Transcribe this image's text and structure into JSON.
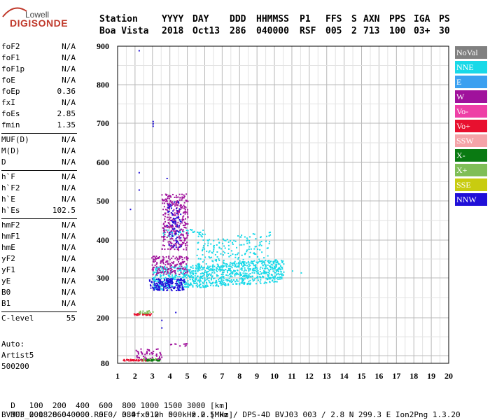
{
  "logo": {
    "line1": "Lowell",
    "line2": "DIGISONDE"
  },
  "header": {
    "labels": [
      "Station",
      "YYYY",
      "DAY",
      "DDD",
      "HHMMSS",
      "P1",
      "FFS",
      "S",
      "AXN",
      "PPS",
      "IGA",
      "PS"
    ],
    "values": [
      "Boa Vista",
      "2018",
      "Oct13",
      "286",
      "040000",
      "RSF",
      "005",
      "2",
      "713",
      "100",
      "03+",
      "30"
    ]
  },
  "params": [
    {
      "name": "foF2",
      "value": "N/A"
    },
    {
      "name": "foF1",
      "value": "N/A"
    },
    {
      "name": "foF1p",
      "value": "N/A"
    },
    {
      "name": "foE",
      "value": "N/A"
    },
    {
      "name": "foEp",
      "value": "0.36"
    },
    {
      "name": "fxI",
      "value": "N/A"
    },
    {
      "name": "foEs",
      "value": "2.85"
    },
    {
      "name": "fmin",
      "value": "1.35"
    },
    {
      "name": "MUF(D)",
      "value": "N/A"
    },
    {
      "name": "M(D)",
      "value": "N/A"
    },
    {
      "name": "D",
      "value": "N/A"
    },
    {
      "name": "h`F",
      "value": "N/A"
    },
    {
      "name": "h`F2",
      "value": "N/A"
    },
    {
      "name": "h`E",
      "value": "N/A"
    },
    {
      "name": "h`Es",
      "value": "102.5"
    },
    {
      "name": "hmF2",
      "value": "N/A"
    },
    {
      "name": "hmF1",
      "value": "N/A"
    },
    {
      "name": "hmE",
      "value": "N/A"
    },
    {
      "name": "yF2",
      "value": "N/A"
    },
    {
      "name": "yF1",
      "value": "N/A"
    },
    {
      "name": "yE",
      "value": "N/A"
    },
    {
      "name": "B0",
      "value": "N/A"
    },
    {
      "name": "B1",
      "value": "N/A"
    },
    {
      "name": "C-level",
      "value": "55"
    }
  ],
  "auto_label": "Auto:",
  "artist": "Artist5",
  "artist_version": "500200",
  "legend": [
    {
      "label": "NoVal",
      "color": "#808080"
    },
    {
      "label": "NNE",
      "color": "#19d9e8"
    },
    {
      "label": "E",
      "color": "#3ba0f0"
    },
    {
      "label": "W",
      "color": "#a0129c"
    },
    {
      "label": "Vo-",
      "color": "#ee3fa6"
    },
    {
      "label": "Vo+",
      "color": "#e8102f"
    },
    {
      "label": "SSW",
      "color": "#f5a3a8"
    },
    {
      "label": "X-",
      "color": "#0a7a12"
    },
    {
      "label": "X+",
      "color": "#7fbe57"
    },
    {
      "label": "SSE",
      "color": "#c8cc10"
    },
    {
      "label": "NNW",
      "color": "#2010d8"
    }
  ],
  "chart_data": {
    "type": "scatter",
    "x_ticks": [
      "1",
      "2",
      "3",
      "4",
      "5",
      "6",
      "7",
      "8",
      "9",
      "10",
      "11",
      "12",
      "13",
      "14",
      "15",
      "16",
      "17",
      "18",
      "19",
      "20"
    ],
    "y_ticks": [
      "80",
      "200",
      "300",
      "400",
      "500",
      "600",
      "700",
      "800",
      "900"
    ],
    "xlim": [
      1,
      20
    ],
    "y_scale": "log-like ionogram height scale",
    "ylim": [
      80,
      900
    ],
    "grid": true,
    "clusters": [
      {
        "color": "#19d9e8",
        "x": [
          3.0,
          10.5
        ],
        "y": [
          270,
          330
        ],
        "n": 900,
        "trend": 0.35
      },
      {
        "color": "#19d9e8",
        "x": [
          5.5,
          9.8
        ],
        "y": [
          320,
          400
        ],
        "n": 180,
        "trend": 0.3
      },
      {
        "color": "#19d9e8",
        "x": [
          3.5,
          6.0
        ],
        "y": [
          410,
          430
        ],
        "n": 50,
        "trend": 0
      },
      {
        "color": "#a0129c",
        "x": [
          3.5,
          5.0
        ],
        "y": [
          375,
          520
        ],
        "n": 320,
        "trend": 0
      },
      {
        "color": "#a0129c",
        "x": [
          2.9,
          5.0
        ],
        "y": [
          310,
          360
        ],
        "n": 160,
        "trend": 0
      },
      {
        "color": "#2010d8",
        "x": [
          2.8,
          4.8
        ],
        "y": [
          270,
          300
        ],
        "n": 180,
        "trend": 0
      },
      {
        "color": "#2010d8",
        "x": [
          3.8,
          4.6
        ],
        "y": [
          380,
          500
        ],
        "n": 70,
        "trend": 0
      },
      {
        "color": "#e8102f",
        "x": [
          1.9,
          2.9
        ],
        "y": [
          208,
          212
        ],
        "n": 40,
        "trend": 0
      },
      {
        "color": "#7fbe57",
        "x": [
          2.2,
          3.0
        ],
        "y": [
          212,
          220
        ],
        "n": 20,
        "trend": 0
      },
      {
        "color": "#e8102f",
        "x": [
          1.3,
          3.0
        ],
        "y": [
          88,
          92
        ],
        "n": 60,
        "trend": 0
      },
      {
        "color": "#7fbe57",
        "x": [
          2.3,
          3.4
        ],
        "y": [
          88,
          94
        ],
        "n": 40,
        "trend": 0
      },
      {
        "color": "#0a7a12",
        "x": [
          2.6,
          3.4
        ],
        "y": [
          88,
          92
        ],
        "n": 30,
        "trend": 0
      },
      {
        "color": "#a0129c",
        "x": [
          2.0,
          3.5
        ],
        "y": [
          92,
          120
        ],
        "n": 50,
        "trend": 0
      },
      {
        "color": "#a0129c",
        "x": [
          4.0,
          5.0
        ],
        "y": [
          125,
          135
        ],
        "n": 12,
        "trend": 0
      }
    ],
    "points": [
      {
        "x": 3.0,
        "y": 700,
        "color": "#2010d8"
      },
      {
        "x": 3.0,
        "y": 706,
        "color": "#2010d8"
      },
      {
        "x": 3.0,
        "y": 694,
        "color": "#2010d8"
      },
      {
        "x": 2.2,
        "y": 575,
        "color": "#2010d8"
      },
      {
        "x": 2.2,
        "y": 530,
        "color": "#2010d8"
      },
      {
        "x": 3.8,
        "y": 560,
        "color": "#2010d8"
      },
      {
        "x": 3.5,
        "y": 175,
        "color": "#2010d8"
      },
      {
        "x": 3.5,
        "y": 195,
        "color": "#2010d8"
      },
      {
        "x": 4.3,
        "y": 215,
        "color": "#2010d8"
      },
      {
        "x": 1.7,
        "y": 480,
        "color": "#2010d8"
      },
      {
        "x": 2.2,
        "y": 890,
        "color": "#2010d8"
      },
      {
        "x": 11.5,
        "y": 315,
        "color": "#19d9e8"
      },
      {
        "x": 11.0,
        "y": 320,
        "color": "#19d9e8"
      }
    ]
  },
  "bottom": {
    "d_label": "D",
    "d_values": [
      "100",
      "200",
      "400",
      "600",
      "800",
      "1000",
      "1500",
      "3000"
    ],
    "d_unit": "[km]",
    "muf_label": "MUF",
    "muf_values": [
      "0.0",
      "0.0",
      "0.0",
      "0.0",
      "0.0",
      "0.0",
      "0.0",
      "0.0"
    ],
    "muf_unit": "[MHz]",
    "footer": "BVJ03_2018286040000.RSF / 384fx512h 50 kHz 2.5 km / DPS-4D BVJ03 003 / 2.8 N 299.3 E Ion2Png 1.3.20"
  }
}
